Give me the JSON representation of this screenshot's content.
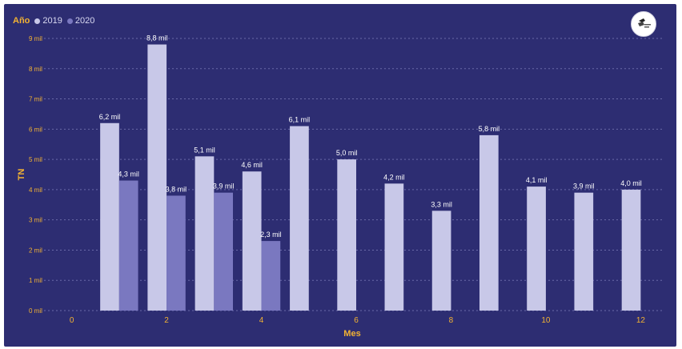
{
  "legend": {
    "title": "Año",
    "items": [
      {
        "label": "2019",
        "color": "#c8c8e8"
      },
      {
        "label": "2020",
        "color": "#7a78c0"
      }
    ]
  },
  "colors": {
    "background": "#2d2d72",
    "accent": "#f2b233",
    "series_2019": "#c8c8e8",
    "series_2020": "#7a78c0"
  },
  "logo": {
    "icon": "company-logo-icon"
  },
  "chart_data": {
    "type": "bar",
    "xlabel": "Mes",
    "ylabel": "TN",
    "xlim": [
      -0.5,
      12.5
    ],
    "ylim": [
      0,
      9
    ],
    "x_ticks": [
      0,
      2,
      4,
      6,
      8,
      10,
      12
    ],
    "y_tick_labels": [
      "0 mil",
      "1 mil",
      "2 mil",
      "3 mil",
      "4 mil",
      "5 mil",
      "6 mil",
      "7 mil",
      "8 mil",
      "9 mil"
    ],
    "grid": true,
    "legend_position": "top-left",
    "series": [
      {
        "name": "2019",
        "x": [
          1,
          2,
          3,
          4,
          5,
          6,
          7,
          8,
          9,
          10,
          11,
          12
        ],
        "values": [
          6.2,
          8.8,
          5.1,
          4.6,
          6.1,
          5.0,
          4.2,
          3.3,
          5.8,
          4.1,
          3.9,
          4.0
        ],
        "labels": [
          "6,2 mil",
          "8,8 mil",
          "5,1 mil",
          "4,6 mil",
          "6,1 mil",
          "5,0 mil",
          "4,2 mil",
          "3,3 mil",
          "5,8 mil",
          "4,1 mil",
          "3,9 mil",
          "4,0 mil"
        ]
      },
      {
        "name": "2020",
        "x": [
          1,
          2,
          3,
          4
        ],
        "values": [
          4.3,
          3.8,
          3.9,
          2.3
        ],
        "labels": [
          "4,3 mil",
          "3,8 mil",
          "3,9 mil",
          "2,3 mil"
        ]
      }
    ]
  }
}
